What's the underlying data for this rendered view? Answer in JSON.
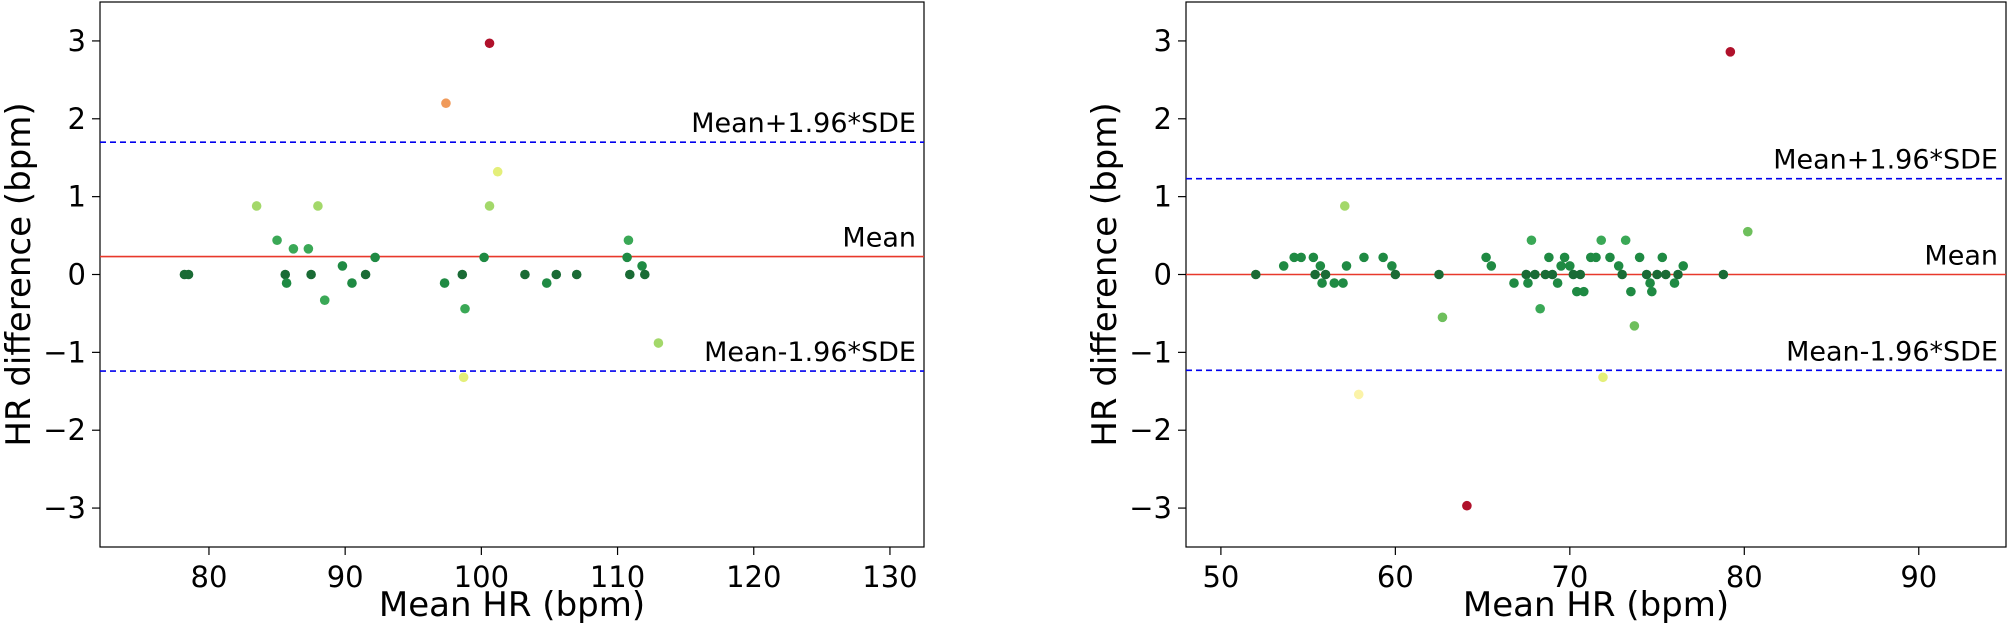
{
  "chart_data": [
    {
      "type": "scatter",
      "xlabel": "Mean HR (bpm)",
      "ylabel": "HR difference (bpm)",
      "xlim": [
        72,
        132.5
      ],
      "ylim": [
        -3.5,
        3.5
      ],
      "xticks": [
        80,
        90,
        100,
        110,
        120,
        130
      ],
      "yticks": [
        -3,
        -2,
        -1,
        0,
        1,
        2,
        3
      ],
      "grid": false,
      "reference_lines": [
        {
          "name": "Mean+1.96*SDE",
          "value": 1.7,
          "color": "#0000ee",
          "style": "dashed",
          "label_anchor": "right-above"
        },
        {
          "name": "Mean",
          "value": 0.23,
          "color": "#e8392b",
          "style": "solid",
          "label_anchor": "right-above"
        },
        {
          "name": "Mean-1.96*SDE",
          "value": -1.24,
          "color": "#0000ee",
          "style": "dashed",
          "label_anchor": "right-above"
        }
      ],
      "points": [
        {
          "x": 78.2,
          "y": 0.0
        },
        {
          "x": 78.5,
          "y": 0.0
        },
        {
          "x": 83.5,
          "y": 0.88
        },
        {
          "x": 85.0,
          "y": 0.44
        },
        {
          "x": 85.6,
          "y": 0.0
        },
        {
          "x": 85.7,
          "y": -0.11
        },
        {
          "x": 86.2,
          "y": 0.33
        },
        {
          "x": 87.3,
          "y": 0.33
        },
        {
          "x": 87.5,
          "y": 0.0
        },
        {
          "x": 88.0,
          "y": 0.88
        },
        {
          "x": 88.5,
          "y": -0.33
        },
        {
          "x": 89.8,
          "y": 0.11
        },
        {
          "x": 90.5,
          "y": -0.11
        },
        {
          "x": 91.5,
          "y": 0.0
        },
        {
          "x": 92.2,
          "y": 0.22
        },
        {
          "x": 97.3,
          "y": -0.11
        },
        {
          "x": 97.4,
          "y": 2.2
        },
        {
          "x": 98.6,
          "y": 0.0
        },
        {
          "x": 98.7,
          "y": -1.32
        },
        {
          "x": 98.8,
          "y": -0.44
        },
        {
          "x": 100.2,
          "y": 0.22
        },
        {
          "x": 100.6,
          "y": 2.97
        },
        {
          "x": 100.6,
          "y": 0.88
        },
        {
          "x": 101.2,
          "y": 1.32
        },
        {
          "x": 103.2,
          "y": 0.0
        },
        {
          "x": 104.8,
          "y": -0.11
        },
        {
          "x": 105.5,
          "y": 0.0
        },
        {
          "x": 107.0,
          "y": 0.0
        },
        {
          "x": 110.7,
          "y": 0.22
        },
        {
          "x": 110.8,
          "y": 0.44
        },
        {
          "x": 110.9,
          "y": 0.0
        },
        {
          "x": 111.8,
          "y": 0.11
        },
        {
          "x": 112.0,
          "y": 0.0
        },
        {
          "x": 113.0,
          "y": -0.88
        }
      ]
    },
    {
      "type": "scatter",
      "xlabel": "Mean HR (bpm)",
      "ylabel": "HR difference (bpm)",
      "xlim": [
        48,
        95
      ],
      "ylim": [
        -3.5,
        3.5
      ],
      "xticks": [
        50,
        60,
        70,
        80,
        90
      ],
      "yticks": [
        -3,
        -2,
        -1,
        0,
        1,
        2,
        3
      ],
      "grid": false,
      "reference_lines": [
        {
          "name": "Mean+1.96*SDE",
          "value": 1.23,
          "color": "#0000ee",
          "style": "dashed",
          "label_anchor": "right-above"
        },
        {
          "name": "Mean",
          "value": 0.0,
          "color": "#e8392b",
          "style": "solid",
          "label_anchor": "right-above"
        },
        {
          "name": "Mean-1.96*SDE",
          "value": -1.23,
          "color": "#0000ee",
          "style": "dashed",
          "label_anchor": "right-above"
        }
      ],
      "points": [
        {
          "x": 52.0,
          "y": 0.0
        },
        {
          "x": 53.6,
          "y": 0.11
        },
        {
          "x": 54.2,
          "y": 0.22
        },
        {
          "x": 54.6,
          "y": 0.22
        },
        {
          "x": 55.3,
          "y": 0.22
        },
        {
          "x": 55.4,
          "y": 0.0
        },
        {
          "x": 55.7,
          "y": 0.11
        },
        {
          "x": 55.8,
          "y": -0.11
        },
        {
          "x": 56.0,
          "y": 0.0
        },
        {
          "x": 56.5,
          "y": -0.11
        },
        {
          "x": 57.0,
          "y": -0.11
        },
        {
          "x": 57.1,
          "y": 0.88
        },
        {
          "x": 57.2,
          "y": 0.11
        },
        {
          "x": 57.9,
          "y": -1.54
        },
        {
          "x": 58.2,
          "y": 0.22
        },
        {
          "x": 59.3,
          "y": 0.22
        },
        {
          "x": 59.8,
          "y": 0.11
        },
        {
          "x": 60.0,
          "y": 0.0
        },
        {
          "x": 62.5,
          "y": 0.0
        },
        {
          "x": 62.7,
          "y": -0.55
        },
        {
          "x": 64.1,
          "y": -2.97
        },
        {
          "x": 65.2,
          "y": 0.22
        },
        {
          "x": 65.5,
          "y": 0.11
        },
        {
          "x": 66.8,
          "y": -0.11
        },
        {
          "x": 67.5,
          "y": 0.0
        },
        {
          "x": 67.6,
          "y": -0.11
        },
        {
          "x": 67.8,
          "y": 0.44
        },
        {
          "x": 68.0,
          "y": 0.0
        },
        {
          "x": 68.3,
          "y": -0.44
        },
        {
          "x": 68.6,
          "y": 0.0
        },
        {
          "x": 68.8,
          "y": 0.22
        },
        {
          "x": 69.0,
          "y": 0.0
        },
        {
          "x": 69.3,
          "y": -0.11
        },
        {
          "x": 69.5,
          "y": 0.11
        },
        {
          "x": 69.7,
          "y": 0.22
        },
        {
          "x": 70.0,
          "y": 0.11
        },
        {
          "x": 70.2,
          "y": 0.0
        },
        {
          "x": 70.4,
          "y": -0.22
        },
        {
          "x": 70.6,
          "y": 0.0
        },
        {
          "x": 70.8,
          "y": -0.22
        },
        {
          "x": 71.2,
          "y": 0.22
        },
        {
          "x": 71.5,
          "y": 0.22
        },
        {
          "x": 71.8,
          "y": 0.44
        },
        {
          "x": 71.9,
          "y": -1.32
        },
        {
          "x": 72.3,
          "y": 0.22
        },
        {
          "x": 72.8,
          "y": 0.11
        },
        {
          "x": 73.0,
          "y": 0.0
        },
        {
          "x": 73.2,
          "y": 0.44
        },
        {
          "x": 73.5,
          "y": -0.22
        },
        {
          "x": 73.7,
          "y": -0.66
        },
        {
          "x": 74.0,
          "y": 0.22
        },
        {
          "x": 74.4,
          "y": 0.0
        },
        {
          "x": 74.6,
          "y": -0.11
        },
        {
          "x": 74.7,
          "y": -0.22
        },
        {
          "x": 75.0,
          "y": 0.0
        },
        {
          "x": 75.3,
          "y": 0.22
        },
        {
          "x": 75.5,
          "y": 0.0
        },
        {
          "x": 76.0,
          "y": -0.11
        },
        {
          "x": 76.2,
          "y": 0.0
        },
        {
          "x": 76.5,
          "y": 0.11
        },
        {
          "x": 78.8,
          "y": 0.0
        },
        {
          "x": 79.2,
          "y": 2.86
        },
        {
          "x": 80.2,
          "y": 0.55
        }
      ]
    }
  ]
}
